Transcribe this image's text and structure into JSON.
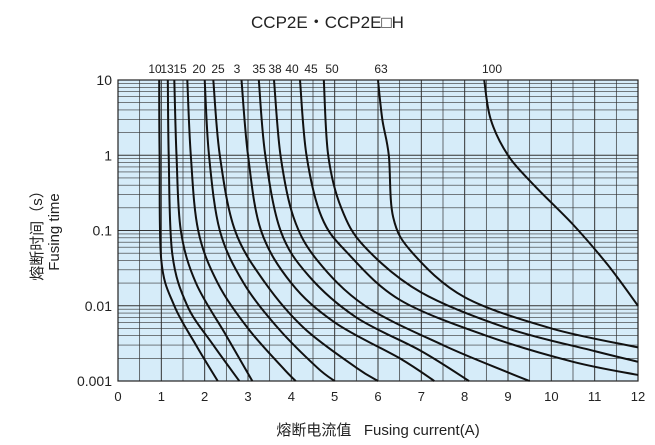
{
  "chart_data": {
    "type": "line",
    "title": "CCP2E・CCP2E□H",
    "xlabel": "熔断电流值   Fusing current(A)",
    "ylabel_cn": "熔断时间（s）",
    "ylabel_en": "Fusing time",
    "xlim": [
      0,
      12
    ],
    "ylim": [
      0.001,
      10
    ],
    "yscale": "log",
    "grid": true,
    "background_color": "#d6ecf9",
    "line_color": "#111111",
    "x_ticks": [
      "0",
      "1",
      "2",
      "3",
      "4",
      "5",
      "6",
      "7",
      "8",
      "9",
      "10",
      "11",
      "12"
    ],
    "y_ticks": [
      "0.001",
      "0.01",
      "0.1",
      "1",
      "10"
    ],
    "top_labels": [
      "10",
      "13",
      "15",
      "20",
      "25",
      "3",
      "35",
      "38",
      "40",
      "45",
      "50",
      "63",
      "100"
    ],
    "series": [
      {
        "name": "10",
        "points": [
          [
            0.95,
            10
          ],
          [
            0.96,
            1
          ],
          [
            1.0,
            0.04
          ],
          [
            1.3,
            0.01
          ],
          [
            1.8,
            0.003
          ],
          [
            2.3,
            0.001
          ]
        ]
      },
      {
        "name": "13",
        "points": [
          [
            1.15,
            10
          ],
          [
            1.17,
            1
          ],
          [
            1.25,
            0.05
          ],
          [
            1.6,
            0.01
          ],
          [
            2.2,
            0.003
          ],
          [
            2.8,
            0.001
          ]
        ]
      },
      {
        "name": "15",
        "points": [
          [
            1.3,
            10
          ],
          [
            1.35,
            1
          ],
          [
            1.45,
            0.1
          ],
          [
            1.8,
            0.02
          ],
          [
            2.5,
            0.004
          ],
          [
            3.1,
            0.001
          ]
        ]
      },
      {
        "name": "20",
        "points": [
          [
            1.6,
            10
          ],
          [
            1.68,
            1
          ],
          [
            1.85,
            0.1
          ],
          [
            2.3,
            0.02
          ],
          [
            3.0,
            0.005
          ],
          [
            3.8,
            0.0015
          ],
          [
            4.1,
            0.001
          ]
        ]
      },
      {
        "name": "25",
        "points": [
          [
            2.0,
            10
          ],
          [
            2.1,
            1
          ],
          [
            2.35,
            0.1
          ],
          [
            2.9,
            0.02
          ],
          [
            3.7,
            0.005
          ],
          [
            4.6,
            0.0015
          ],
          [
            5.0,
            0.001
          ]
        ]
      },
      {
        "name": "3",
        "points": [
          [
            2.2,
            10
          ],
          [
            2.35,
            1
          ],
          [
            2.7,
            0.1
          ],
          [
            3.4,
            0.02
          ],
          [
            4.3,
            0.005
          ],
          [
            5.5,
            0.0015
          ],
          [
            6.0,
            0.001
          ]
        ]
      },
      {
        "name": "35",
        "points": [
          [
            2.85,
            10
          ],
          [
            3.0,
            1
          ],
          [
            3.3,
            0.1
          ],
          [
            4.0,
            0.02
          ],
          [
            5.0,
            0.006
          ],
          [
            6.5,
            0.002
          ],
          [
            7.3,
            0.001
          ]
        ]
      },
      {
        "name": "38",
        "points": [
          [
            3.25,
            10
          ],
          [
            3.4,
            1
          ],
          [
            3.75,
            0.1
          ],
          [
            4.4,
            0.025
          ],
          [
            5.5,
            0.007
          ],
          [
            7.0,
            0.0025
          ],
          [
            8.1,
            0.001
          ]
        ]
      },
      {
        "name": "40",
        "points": [
          [
            3.6,
            10
          ],
          [
            3.75,
            1
          ],
          [
            4.05,
            0.15
          ],
          [
            4.6,
            0.04
          ],
          [
            5.7,
            0.01
          ],
          [
            7.5,
            0.003
          ],
          [
            9.0,
            0.0013
          ],
          [
            9.5,
            0.001
          ]
        ]
      },
      {
        "name": "45",
        "points": [
          [
            4.2,
            10
          ],
          [
            4.35,
            1
          ],
          [
            4.7,
            0.15
          ],
          [
            5.3,
            0.05
          ],
          [
            6.5,
            0.012
          ],
          [
            8.5,
            0.004
          ],
          [
            10.5,
            0.0018
          ],
          [
            12,
            0.0012
          ]
        ]
      },
      {
        "name": "50",
        "points": [
          [
            4.75,
            10
          ],
          [
            4.85,
            1
          ],
          [
            5.15,
            0.2
          ],
          [
            5.7,
            0.06
          ],
          [
            7.0,
            0.015
          ],
          [
            9.0,
            0.005
          ],
          [
            11.0,
            0.0025
          ],
          [
            12,
            0.0018
          ]
        ]
      },
      {
        "name": "63",
        "points": [
          [
            6.0,
            10
          ],
          [
            6.1,
            3
          ],
          [
            6.25,
            1
          ],
          [
            6.35,
            0.15
          ],
          [
            6.8,
            0.05
          ],
          [
            8.0,
            0.013
          ],
          [
            10.0,
            0.005
          ],
          [
            12,
            0.0028
          ]
        ]
      },
      {
        "name": "100",
        "points": [
          [
            8.45,
            10
          ],
          [
            8.6,
            3
          ],
          [
            9.0,
            1
          ],
          [
            9.6,
            0.4
          ],
          [
            10.5,
            0.12
          ],
          [
            11.3,
            0.035
          ],
          [
            12,
            0.01
          ]
        ]
      }
    ]
  }
}
